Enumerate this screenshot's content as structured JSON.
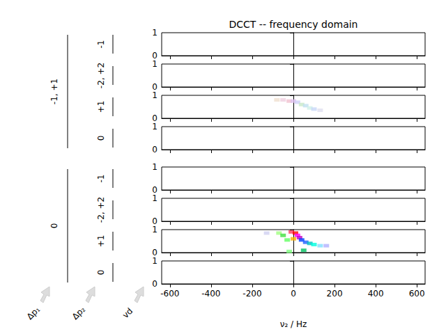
{
  "chart_data": {
    "type": "dcct",
    "title": "DCCT -- frequency domain",
    "x_label": "ν₂ / Hz",
    "xlim": [
      -640,
      640
    ],
    "xticks": [
      -600,
      -400,
      -200,
      0,
      200,
      400,
      600
    ],
    "ylim": [
      0,
      1
    ],
    "yticks": [
      0,
      1
    ],
    "axis_names": [
      "Δp₁",
      "Δp₂",
      "vd"
    ],
    "groups": [
      {
        "label": "-1, +1",
        "panels": [
          {
            "label": "-1",
            "x": [],
            "y": [],
            "colors": []
          },
          {
            "label": "-2, +2",
            "x": [],
            "y": [],
            "colors": []
          },
          {
            "label": "+1",
            "x": [
              -80,
              -50,
              -20,
              0,
              20,
              40,
              60,
              80,
              100,
              130
            ],
            "y": [
              0.8,
              0.8,
              0.75,
              0.75,
              0.7,
              0.6,
              0.55,
              0.45,
              0.4,
              0.35
            ],
            "colors": [
              "#f0e0d0",
              "#f0d0e0",
              "#f0c0d0",
              "#e0c0f0",
              "#d0d0f8",
              "#c8e8c8",
              "#c0e0f0",
              "#d0f0e8",
              "#c8d8f8",
              "#e0e0f0"
            ]
          },
          {
            "label": "0",
            "x": [],
            "y": [],
            "colors": []
          }
        ]
      },
      {
        "label": "0",
        "panels": [
          {
            "label": "-1",
            "x": [],
            "y": [],
            "colors": []
          },
          {
            "label": "-2, +2",
            "x": [],
            "y": [],
            "colors": []
          },
          {
            "label": "+1",
            "x": [
              -130,
              -70,
              -50,
              -30,
              -10,
              10,
              20,
              30,
              0,
              40,
              60,
              80,
              100,
              130,
              160,
              50,
              -20
            ],
            "y": [
              0.85,
              0.85,
              0.75,
              0.55,
              0.9,
              0.85,
              0.75,
              0.65,
              0.6,
              0.55,
              0.45,
              0.4,
              0.35,
              0.3,
              0.3,
              0.1,
              0.05
            ],
            "colors": [
              "#d0d0f0",
              "#a0ff80",
              "#40e040",
              "#60ff60",
              "#ff4060",
              "#ff0000",
              "#ff00ff",
              "#c000c0",
              "#ffb000",
              "#0040ff",
              "#2060ff",
              "#00c0c0",
              "#00ffe0",
              "#80e0ff",
              "#b0b0ff",
              "#00c060",
              "#80ff80"
            ]
          },
          {
            "label": "0",
            "x": [],
            "y": [],
            "colors": []
          }
        ]
      }
    ]
  }
}
